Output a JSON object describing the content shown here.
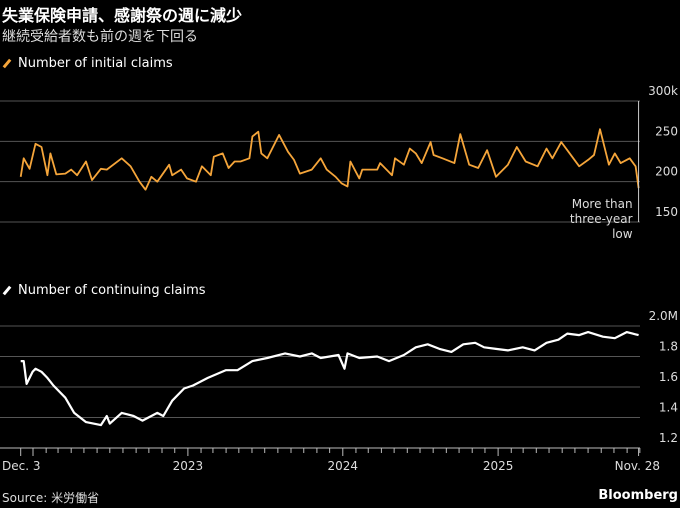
{
  "header": {
    "title": "失業保険申請、感謝祭の週に減少",
    "subtitle": "継続受給者数も前の週を下回る"
  },
  "footer": {
    "source": "Source: 米労働省",
    "brand": "Bloomberg"
  },
  "colors": {
    "initial": "#f5a53a",
    "continuing": "#ffffff",
    "grid": "#555555",
    "background": "#000000"
  },
  "chart_data": [
    {
      "type": "line",
      "legend": "Number of initial claims",
      "ylim": [
        150,
        300
      ],
      "yticks": [
        "300k",
        "250",
        "200",
        "150"
      ],
      "ytick_values": [
        300,
        250,
        200,
        150
      ],
      "annotation": [
        "More than",
        "three-year",
        "low"
      ],
      "grid": true,
      "points": [
        [
          "2021-12-03",
          206
        ],
        [
          "2021-12-10",
          229
        ],
        [
          "2021-12-24",
          216
        ],
        [
          "2022-01-07",
          247
        ],
        [
          "2022-01-21",
          243
        ],
        [
          "2022-02-04",
          208
        ],
        [
          "2022-02-11",
          235
        ],
        [
          "2022-02-25",
          209
        ],
        [
          "2022-03-18",
          210
        ],
        [
          "2022-04-01",
          215
        ],
        [
          "2022-04-15",
          208
        ],
        [
          "2022-05-06",
          225
        ],
        [
          "2022-05-20",
          202
        ],
        [
          "2022-06-10",
          216
        ],
        [
          "2022-06-24",
          215
        ],
        [
          "2022-07-29",
          229
        ],
        [
          "2022-08-19",
          219
        ],
        [
          "2022-09-09",
          200
        ],
        [
          "2022-09-23",
          190
        ],
        [
          "2022-10-07",
          206
        ],
        [
          "2022-10-21",
          200
        ],
        [
          "2022-11-18",
          221
        ],
        [
          "2022-11-25",
          208
        ],
        [
          "2022-12-16",
          215
        ],
        [
          "2022-12-30",
          204
        ],
        [
          "2023-01-20",
          200
        ],
        [
          "2023-02-03",
          219
        ],
        [
          "2023-02-24",
          208
        ],
        [
          "2023-03-03",
          231
        ],
        [
          "2023-03-24",
          235
        ],
        [
          "2023-04-07",
          217
        ],
        [
          "2023-04-21",
          225
        ],
        [
          "2023-05-05",
          225
        ],
        [
          "2023-05-26",
          229
        ],
        [
          "2023-06-02",
          256
        ],
        [
          "2023-06-16",
          262
        ],
        [
          "2023-06-23",
          235
        ],
        [
          "2023-07-07",
          229
        ],
        [
          "2023-08-04",
          258
        ],
        [
          "2023-08-25",
          237
        ],
        [
          "2023-09-08",
          227
        ],
        [
          "2023-09-22",
          210
        ],
        [
          "2023-10-20",
          215
        ],
        [
          "2023-11-10",
          229
        ],
        [
          "2023-11-24",
          215
        ],
        [
          "2023-12-15",
          206
        ],
        [
          "2023-12-29",
          198
        ],
        [
          "2024-01-12",
          194
        ],
        [
          "2024-01-19",
          225
        ],
        [
          "2024-02-09",
          204
        ],
        [
          "2024-02-16",
          215
        ],
        [
          "2024-03-22",
          215
        ],
        [
          "2024-03-29",
          223
        ],
        [
          "2024-04-26",
          208
        ],
        [
          "2024-05-03",
          229
        ],
        [
          "2024-05-24",
          221
        ],
        [
          "2024-06-07",
          241
        ],
        [
          "2024-06-21",
          235
        ],
        [
          "2024-07-05",
          223
        ],
        [
          "2024-07-26",
          249
        ],
        [
          "2024-08-02",
          233
        ],
        [
          "2024-08-23",
          229
        ],
        [
          "2024-09-20",
          223
        ],
        [
          "2024-10-04",
          259
        ],
        [
          "2024-10-25",
          221
        ],
        [
          "2024-11-15",
          217
        ],
        [
          "2024-12-06",
          239
        ],
        [
          "2024-12-27",
          206
        ],
        [
          "2025-01-24",
          221
        ],
        [
          "2025-02-14",
          243
        ],
        [
          "2025-03-07",
          225
        ],
        [
          "2025-04-04",
          219
        ],
        [
          "2025-04-25",
          241
        ],
        [
          "2025-05-09",
          229
        ],
        [
          "2025-05-30",
          249
        ],
        [
          "2025-06-13",
          239
        ],
        [
          "2025-07-11",
          219
        ],
        [
          "2025-08-01",
          227
        ],
        [
          "2025-08-15",
          233
        ],
        [
          "2025-08-29",
          265
        ],
        [
          "2025-09-19",
          221
        ],
        [
          "2025-10-03",
          235
        ],
        [
          "2025-10-17",
          223
        ],
        [
          "2025-11-07",
          229
        ],
        [
          "2025-11-21",
          219
        ],
        [
          "2025-11-28",
          192
        ]
      ]
    },
    {
      "type": "line",
      "legend": "Number of continuing claims",
      "ylim": [
        1.2,
        2.0
      ],
      "yticks": [
        "2.0M",
        "1.8",
        "1.6",
        "1.4",
        "1.2"
      ],
      "ytick_values": [
        2.0,
        1.8,
        1.6,
        1.4,
        1.2
      ],
      "xticks": [
        "Dec. 3",
        "2023",
        "2024",
        "2025",
        "Nov. 28"
      ],
      "xtick_dates": [
        "2021-12-03",
        "2023-01-01",
        "2024-01-01",
        "2025-01-01",
        "2025-11-28"
      ],
      "grid": true,
      "points": [
        [
          "2021-12-03",
          1.77
        ],
        [
          "2021-12-10",
          1.77
        ],
        [
          "2021-12-17",
          1.62
        ],
        [
          "2021-12-31",
          1.7
        ],
        [
          "2022-01-07",
          1.72
        ],
        [
          "2022-01-21",
          1.7
        ],
        [
          "2022-02-04",
          1.66
        ],
        [
          "2022-02-18",
          1.61
        ],
        [
          "2022-03-18",
          1.53
        ],
        [
          "2022-04-08",
          1.43
        ],
        [
          "2022-05-06",
          1.37
        ],
        [
          "2022-06-10",
          1.35
        ],
        [
          "2022-06-24",
          1.41
        ],
        [
          "2022-07-01",
          1.36
        ],
        [
          "2022-07-29",
          1.43
        ],
        [
          "2022-08-26",
          1.41
        ],
        [
          "2022-09-16",
          1.38
        ],
        [
          "2022-10-21",
          1.43
        ],
        [
          "2022-11-04",
          1.41
        ],
        [
          "2022-11-25",
          1.51
        ],
        [
          "2022-12-23",
          1.59
        ],
        [
          "2023-01-13",
          1.61
        ],
        [
          "2023-02-17",
          1.66
        ],
        [
          "2023-03-31",
          1.71
        ],
        [
          "2023-04-28",
          1.71
        ],
        [
          "2023-06-02",
          1.77
        ],
        [
          "2023-07-07",
          1.79
        ],
        [
          "2023-08-18",
          1.82
        ],
        [
          "2023-09-22",
          1.8
        ],
        [
          "2023-10-20",
          1.82
        ],
        [
          "2023-11-10",
          1.79
        ],
        [
          "2023-12-22",
          1.81
        ],
        [
          "2024-01-05",
          1.72
        ],
        [
          "2024-01-12",
          1.82
        ],
        [
          "2024-02-09",
          1.79
        ],
        [
          "2024-03-22",
          1.8
        ],
        [
          "2024-04-19",
          1.77
        ],
        [
          "2024-05-24",
          1.81
        ],
        [
          "2024-06-21",
          1.86
        ],
        [
          "2024-07-19",
          1.88
        ],
        [
          "2024-08-16",
          1.85
        ],
        [
          "2024-09-13",
          1.83
        ],
        [
          "2024-10-11",
          1.88
        ],
        [
          "2024-11-08",
          1.89
        ],
        [
          "2024-11-29",
          1.86
        ],
        [
          "2024-12-27",
          1.85
        ],
        [
          "2025-01-24",
          1.84
        ],
        [
          "2025-02-28",
          1.86
        ],
        [
          "2025-03-28",
          1.84
        ],
        [
          "2025-04-25",
          1.89
        ],
        [
          "2025-05-23",
          1.91
        ],
        [
          "2025-06-13",
          1.95
        ],
        [
          "2025-07-11",
          1.94
        ],
        [
          "2025-08-01",
          1.96
        ],
        [
          "2025-09-05",
          1.93
        ],
        [
          "2025-10-03",
          1.92
        ],
        [
          "2025-10-31",
          1.96
        ],
        [
          "2025-11-14",
          1.95
        ],
        [
          "2025-11-28",
          1.94
        ]
      ]
    }
  ]
}
